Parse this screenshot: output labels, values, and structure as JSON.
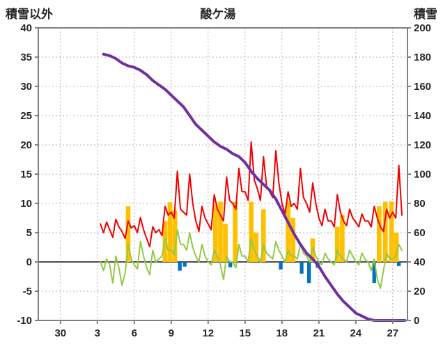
{
  "chart_data": {
    "type": "line+bar",
    "title": "酸ケ湯",
    "left_axis": {
      "label": "積雪以外",
      "min": -10,
      "max": 40,
      "ticks": [
        40,
        35,
        30,
        25,
        20,
        15,
        10,
        5,
        0,
        -5,
        -10
      ]
    },
    "right_axis": {
      "label": "積雪",
      "min": 0,
      "max": 200,
      "ticks": [
        200,
        180,
        160,
        140,
        120,
        100,
        80,
        60,
        40,
        20,
        0
      ]
    },
    "x_axis": {
      "min": -1.8,
      "max": 28.2,
      "tick_positions": [
        0,
        3,
        6,
        9,
        12,
        15,
        18,
        21,
        24,
        27
      ],
      "tick_labels": [
        "30",
        "3",
        "6",
        "9",
        "12",
        "15",
        "18",
        "21",
        "24",
        "27"
      ]
    },
    "grid": true,
    "legend": "none",
    "colors": {
      "grid": "#c9aaaa",
      "frame": "#808080",
      "zero_line": "#4d4d4d",
      "text": "#262626",
      "purple": "#7030a0",
      "red": "#f00000",
      "green": "#92c947",
      "orange": "#ffc000",
      "blue": "#0070c0"
    },
    "series": [
      {
        "name": "orange-bars",
        "type": "bar",
        "axis": "left",
        "color_key": "orange",
        "bar_width_days": 0.38,
        "points": [
          {
            "x": 5.5,
            "v": 9.5
          },
          {
            "x": 8.5,
            "v": 7.0
          },
          {
            "x": 8.9,
            "v": 10.2
          },
          {
            "x": 9.3,
            "v": 8.8
          },
          {
            "x": 12.6,
            "v": 9.8
          },
          {
            "x": 13.0,
            "v": 10.3
          },
          {
            "x": 13.4,
            "v": 6.5
          },
          {
            "x": 14.2,
            "v": 10.3
          },
          {
            "x": 15.5,
            "v": 10.3
          },
          {
            "x": 15.9,
            "v": 5.0
          },
          {
            "x": 16.5,
            "v": 9.0
          },
          {
            "x": 18.5,
            "v": 10.3
          },
          {
            "x": 18.9,
            "v": 7.5
          },
          {
            "x": 20.5,
            "v": 4.0
          },
          {
            "x": 22.5,
            "v": 6.0
          },
          {
            "x": 22.9,
            "v": 8.0
          },
          {
            "x": 25.9,
            "v": 9.5
          },
          {
            "x": 26.4,
            "v": 10.3
          },
          {
            "x": 26.9,
            "v": 10.3
          },
          {
            "x": 27.3,
            "v": 5.0
          }
        ]
      },
      {
        "name": "blue-bars",
        "type": "bar",
        "axis": "left",
        "color_key": "blue",
        "bar_width_days": 0.3,
        "points": [
          {
            "x": 9.7,
            "v": -1.5
          },
          {
            "x": 10.1,
            "v": -0.8
          },
          {
            "x": 13.8,
            "v": -0.9
          },
          {
            "x": 17.9,
            "v": -1.3
          },
          {
            "x": 19.6,
            "v": -2.0
          },
          {
            "x": 20.2,
            "v": -3.6
          },
          {
            "x": 20.9,
            "v": -1.0
          },
          {
            "x": 25.5,
            "v": -3.6
          },
          {
            "x": 27.5,
            "v": -0.7
          }
        ]
      },
      {
        "name": "green-line",
        "type": "line",
        "axis": "left",
        "color_key": "green",
        "width": 2,
        "x_start": 3.25,
        "x_step": 0.25,
        "values": [
          0.0,
          -1.5,
          0.5,
          -0.5,
          -3.6,
          1.0,
          -1.0,
          -4.0,
          -2.0,
          3.0,
          0.5,
          -0.5,
          -1.2,
          3.5,
          1.0,
          -1.0,
          -2.2,
          2.0,
          0.0,
          0.5,
          1.0,
          4.0,
          2.0,
          2.0,
          1.2,
          5.5,
          3.0,
          3.0,
          2.0,
          5.0,
          2.5,
          1.0,
          0.0,
          3.0,
          1.0,
          0.0,
          -0.5,
          2.0,
          1.0,
          -0.5,
          -3.0,
          1.0,
          0.0,
          0.0,
          -1.0,
          3.0,
          1.0,
          1.0,
          0.0,
          4.0,
          2.0,
          1.0,
          0.0,
          3.0,
          1.5,
          1.0,
          0.5,
          3.5,
          2.0,
          1.0,
          0.0,
          2.0,
          1.0,
          1.0,
          0.5,
          3.0,
          1.5,
          1.0,
          0.0,
          2.5,
          1.0,
          0.0,
          -0.5,
          1.5,
          0.5,
          0.0,
          -0.5,
          2.0,
          1.0,
          0.5,
          0.0,
          2.0,
          1.0,
          0.0,
          -0.5,
          1.5,
          0.5,
          0.0,
          -1.5,
          0.5,
          -3.0,
          -4.5,
          -1.5,
          1.5,
          0.5,
          0.5,
          1.0,
          3.0,
          2.0
        ]
      },
      {
        "name": "red-line",
        "type": "line",
        "axis": "left",
        "color_key": "red",
        "width": 2,
        "x_start": 3.25,
        "x_step": 0.25,
        "values": [
          6.5,
          5.0,
          6.8,
          5.5,
          4.2,
          7.3,
          6.0,
          5.2,
          4.0,
          7.0,
          5.8,
          6.2,
          5.0,
          7.6,
          5.5,
          4.0,
          2.6,
          6.0,
          5.0,
          5.5,
          4.5,
          9.5,
          8.0,
          8.5,
          7.5,
          15.5,
          9.0,
          8.5,
          8.0,
          15.0,
          10.0,
          7.0,
          5.2,
          9.5,
          7.5,
          6.5,
          5.5,
          11.5,
          9.0,
          8.0,
          7.0,
          14.5,
          10.5,
          10.0,
          9.0,
          16.0,
          12.0,
          12.0,
          10.5,
          20.5,
          14.0,
          12.5,
          10.5,
          18.0,
          13.0,
          12.0,
          11.0,
          19.0,
          13.5,
          10.0,
          8.2,
          12.0,
          9.5,
          10.0,
          9.0,
          16.0,
          11.0,
          10.0,
          8.5,
          13.5,
          10.0,
          7.5,
          6.2,
          9.0,
          7.0,
          7.0,
          6.0,
          11.5,
          8.5,
          7.0,
          6.2,
          9.0,
          7.5,
          6.8,
          6.0,
          8.2,
          7.0,
          7.0,
          6.0,
          9.5,
          7.5,
          6.0,
          5.2,
          9.0,
          7.5,
          8.5,
          7.5,
          16.5,
          8.0
        ]
      },
      {
        "name": "積雪-line",
        "type": "line",
        "axis": "right",
        "color_key": "purple",
        "width": 4,
        "x_start": 3.5,
        "x_step": 0.5,
        "values": [
          182,
          181,
          179,
          176,
          174,
          173,
          171,
          168,
          164,
          161,
          158,
          154,
          150,
          146,
          140,
          134,
          130,
          126,
          122,
          119,
          117,
          114,
          112,
          108,
          102,
          97,
          93,
          89,
          83,
          75,
          67,
          59,
          52,
          46,
          42,
          37,
          30,
          24,
          18,
          13,
          9,
          5,
          3,
          1,
          0,
          0,
          0,
          0,
          0,
          0
        ]
      }
    ]
  }
}
